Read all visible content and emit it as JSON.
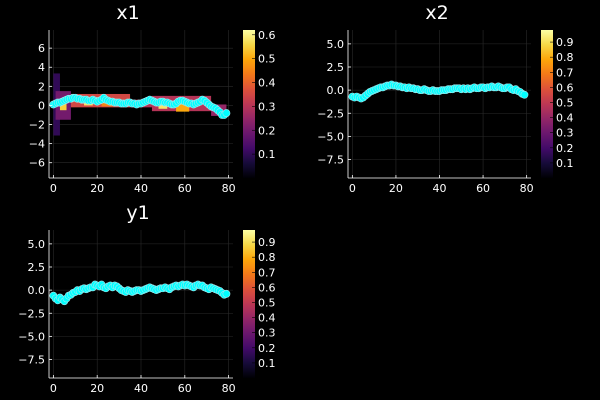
{
  "colors": {
    "background": "#000000",
    "text": "#ffffff",
    "grid": "#2a2a2a",
    "marker_fill": "#00ffff",
    "marker_edge": "#9fe8ee",
    "colormap": "inferno"
  },
  "chart_data": [
    {
      "id": "x1",
      "type": "heatmap",
      "title": "x1",
      "xlabel": "",
      "ylabel": "",
      "xlim": [
        -2,
        82
      ],
      "ylim": [
        -7.6,
        7.9
      ],
      "xticks": [
        0,
        20,
        40,
        60,
        80
      ],
      "xtick_labels": [
        "0",
        "20",
        "40",
        "60",
        "80"
      ],
      "yticks": [
        -6,
        -4,
        -2,
        0,
        2,
        4,
        6
      ],
      "ytick_labels": [
        "−6",
        "−4",
        "−2",
        "0",
        "2",
        "4",
        "6"
      ],
      "grid": true,
      "colorbar": {
        "min": 0,
        "max": 0.62,
        "ticks": [
          0.1,
          0.2,
          0.3,
          0.4,
          0.5,
          0.6
        ],
        "tick_labels": [
          "0.1",
          "0.2",
          "0.3",
          "0.4",
          "0.5",
          "0.6"
        ]
      },
      "heatmap_bands": [
        {
          "x_from": 0,
          "x_to": 3,
          "y_center": 0.1,
          "height": 6.5,
          "value": 0.1
        },
        {
          "x_from": 1,
          "x_to": 8,
          "y_center": 0.0,
          "height": 3.0,
          "value": 0.2
        },
        {
          "x_from": 3,
          "x_to": 6,
          "y_center": 0.1,
          "height": 1.2,
          "value": 0.55
        },
        {
          "x_from": 8,
          "x_to": 35,
          "y_center": 0.5,
          "height": 1.4,
          "value": 0.35
        },
        {
          "x_from": 14,
          "x_to": 18,
          "y_center": 0.4,
          "height": 0.8,
          "value": 0.58
        },
        {
          "x_from": 22,
          "x_to": 28,
          "y_center": 0.3,
          "height": 0.8,
          "value": 0.45
        },
        {
          "x_from": 35,
          "x_to": 45,
          "y_center": 0.2,
          "height": 0.8,
          "value": 0.3
        },
        {
          "x_from": 45,
          "x_to": 72,
          "y_center": 0.2,
          "height": 1.6,
          "value": 0.3
        },
        {
          "x_from": 48,
          "x_to": 52,
          "y_center": 0.1,
          "height": 0.9,
          "value": 0.58
        },
        {
          "x_from": 56,
          "x_to": 62,
          "y_center": -0.2,
          "height": 0.9,
          "value": 0.5
        },
        {
          "x_from": 72,
          "x_to": 79,
          "y_center": -0.5,
          "height": 1.2,
          "value": 0.25
        }
      ],
      "series": [
        {
          "x": [
            0,
            1,
            2,
            3,
            4,
            5,
            6,
            7,
            8,
            9,
            10,
            11,
            12,
            13,
            14,
            15,
            16,
            17,
            18,
            19,
            20,
            21,
            22,
            23,
            24,
            25,
            26,
            27,
            28,
            29,
            30,
            31,
            32,
            33,
            34,
            35,
            36,
            37,
            38,
            39,
            40,
            41,
            42,
            43,
            44,
            45,
            46,
            47,
            48,
            49,
            50,
            51,
            52,
            53,
            54,
            55,
            56,
            57,
            58,
            59,
            60,
            61,
            62,
            63,
            64,
            65,
            66,
            67,
            68,
            69,
            70,
            71,
            72,
            73,
            74,
            75,
            76,
            77,
            78,
            79
          ],
          "y": [
            0.1,
            0.2,
            0.3,
            0.3,
            0.4,
            0.5,
            0.6,
            0.7,
            0.7,
            0.8,
            0.8,
            0.7,
            0.7,
            0.6,
            0.6,
            0.6,
            0.5,
            0.5,
            0.6,
            0.5,
            0.4,
            0.5,
            0.6,
            0.8,
            0.6,
            0.5,
            0.4,
            0.4,
            0.3,
            0.3,
            0.3,
            0.2,
            0.2,
            0.2,
            0.3,
            0.3,
            0.2,
            0.2,
            0.1,
            0.2,
            0.2,
            0.3,
            0.4,
            0.5,
            0.6,
            0.5,
            0.4,
            0.3,
            0.3,
            0.4,
            0.4,
            0.3,
            0.3,
            0.2,
            0.1,
            0.1,
            0.2,
            0.4,
            0.5,
            0.5,
            0.4,
            0.3,
            0.2,
            0.2,
            0.1,
            0.2,
            0.3,
            0.4,
            0.6,
            0.5,
            0.3,
            0.1,
            -0.1,
            -0.2,
            -0.3,
            -0.5,
            -0.7,
            -1.0,
            -1.0,
            -0.8
          ]
        }
      ]
    },
    {
      "id": "x2",
      "type": "scatter",
      "title": "x2",
      "xlabel": "",
      "ylabel": "",
      "xlim": [
        -2,
        82
      ],
      "ylim": [
        -9.5,
        6.5
      ],
      "xticks": [
        0,
        20,
        40,
        60,
        80
      ],
      "xtick_labels": [
        "0",
        "20",
        "40",
        "60",
        "80"
      ],
      "yticks": [
        -7.5,
        -5.0,
        -2.5,
        0.0,
        2.5,
        5.0
      ],
      "ytick_labels": [
        "−7.5",
        "−5.0",
        "−2.5",
        "0.0",
        "2.5",
        "5.0"
      ],
      "grid": true,
      "colorbar": {
        "min": 0,
        "max": 0.98,
        "ticks": [
          0.1,
          0.2,
          0.3,
          0.4,
          0.5,
          0.6,
          0.7,
          0.8,
          0.9
        ],
        "tick_labels": [
          "0.1",
          "0.2",
          "0.3",
          "0.4",
          "0.5",
          "0.6",
          "0.7",
          "0.8",
          "0.9"
        ]
      },
      "series": [
        {
          "x": [
            0,
            1,
            2,
            3,
            4,
            5,
            6,
            7,
            8,
            9,
            10,
            11,
            12,
            13,
            14,
            15,
            16,
            17,
            18,
            19,
            20,
            21,
            22,
            23,
            24,
            25,
            26,
            27,
            28,
            29,
            30,
            31,
            32,
            33,
            34,
            35,
            36,
            37,
            38,
            39,
            40,
            41,
            42,
            43,
            44,
            45,
            46,
            47,
            48,
            49,
            50,
            51,
            52,
            53,
            54,
            55,
            56,
            57,
            58,
            59,
            60,
            61,
            62,
            63,
            64,
            65,
            66,
            67,
            68,
            69,
            70,
            71,
            72,
            73,
            74,
            75,
            76,
            77,
            78,
            79
          ],
          "y": [
            -0.7,
            -0.8,
            -0.7,
            -0.8,
            -0.9,
            -0.8,
            -0.6,
            -0.4,
            -0.2,
            -0.1,
            0.0,
            0.1,
            0.2,
            0.3,
            0.3,
            0.4,
            0.5,
            0.5,
            0.6,
            0.5,
            0.5,
            0.4,
            0.4,
            0.3,
            0.3,
            0.2,
            0.3,
            0.2,
            0.2,
            0.1,
            0.1,
            0.0,
            0.0,
            0.1,
            0.0,
            -0.1,
            -0.1,
            0.0,
            -0.1,
            -0.1,
            -0.1,
            0.0,
            0.0,
            0.0,
            0.1,
            0.1,
            0.1,
            0.2,
            0.2,
            0.2,
            0.1,
            0.2,
            0.1,
            0.2,
            0.1,
            0.2,
            0.3,
            0.2,
            0.2,
            0.3,
            0.3,
            0.2,
            0.3,
            0.3,
            0.4,
            0.3,
            0.3,
            0.4,
            0.3,
            0.2,
            0.2,
            0.3,
            0.3,
            0.1,
            0.0,
            0.1,
            -0.1,
            -0.2,
            -0.4,
            -0.5
          ]
        }
      ]
    },
    {
      "id": "y1",
      "type": "scatter",
      "title": "y1",
      "xlabel": "",
      "ylabel": "",
      "xlim": [
        -2,
        82
      ],
      "ylim": [
        -9.5,
        6.5
      ],
      "xticks": [
        0,
        20,
        40,
        60,
        80
      ],
      "xtick_labels": [
        "0",
        "20",
        "40",
        "60",
        "80"
      ],
      "yticks": [
        -7.5,
        -5.0,
        -2.5,
        0.0,
        2.5,
        5.0
      ],
      "ytick_labels": [
        "−7.5",
        "−5.0",
        "−2.5",
        "0.0",
        "2.5",
        "5.0"
      ],
      "grid": true,
      "colorbar": {
        "min": 0,
        "max": 0.98,
        "ticks": [
          0.1,
          0.2,
          0.3,
          0.4,
          0.5,
          0.6,
          0.7,
          0.8,
          0.9
        ],
        "tick_labels": [
          "0.1",
          "0.2",
          "0.3",
          "0.4",
          "0.5",
          "0.6",
          "0.7",
          "0.8",
          "0.9"
        ]
      },
      "series": [
        {
          "x": [
            0,
            1,
            2,
            3,
            4,
            5,
            6,
            7,
            8,
            9,
            10,
            11,
            12,
            13,
            14,
            15,
            16,
            17,
            18,
            19,
            20,
            21,
            22,
            23,
            24,
            25,
            26,
            27,
            28,
            29,
            30,
            31,
            32,
            33,
            34,
            35,
            36,
            37,
            38,
            39,
            40,
            41,
            42,
            43,
            44,
            45,
            46,
            47,
            48,
            49,
            50,
            51,
            52,
            53,
            54,
            55,
            56,
            57,
            58,
            59,
            60,
            61,
            62,
            63,
            64,
            65,
            66,
            67,
            68,
            69,
            70,
            71,
            72,
            73,
            74,
            75,
            76,
            77,
            78,
            79
          ],
          "y": [
            -0.6,
            -0.9,
            -1.1,
            -0.8,
            -1.0,
            -1.2,
            -0.9,
            -0.6,
            -0.5,
            -0.3,
            -0.2,
            0.0,
            -0.1,
            0.1,
            0.2,
            0.1,
            0.2,
            0.3,
            0.3,
            0.6,
            0.5,
            0.4,
            0.6,
            0.3,
            0.2,
            0.4,
            0.5,
            0.3,
            0.5,
            0.4,
            0.2,
            0.0,
            -0.1,
            -0.2,
            0.0,
            -0.1,
            -0.2,
            -0.1,
            0.0,
            0.0,
            -0.1,
            0.0,
            0.1,
            0.2,
            0.3,
            0.2,
            0.1,
            0.0,
            0.1,
            0.2,
            0.2,
            0.3,
            0.2,
            0.1,
            0.3,
            0.4,
            0.5,
            0.4,
            0.5,
            0.6,
            0.5,
            0.6,
            0.5,
            0.4,
            0.3,
            0.5,
            0.6,
            0.5,
            0.5,
            0.3,
            0.2,
            0.1,
            0.3,
            0.2,
            0.1,
            0.0,
            -0.1,
            -0.3,
            -0.5,
            -0.4
          ]
        }
      ]
    }
  ]
}
